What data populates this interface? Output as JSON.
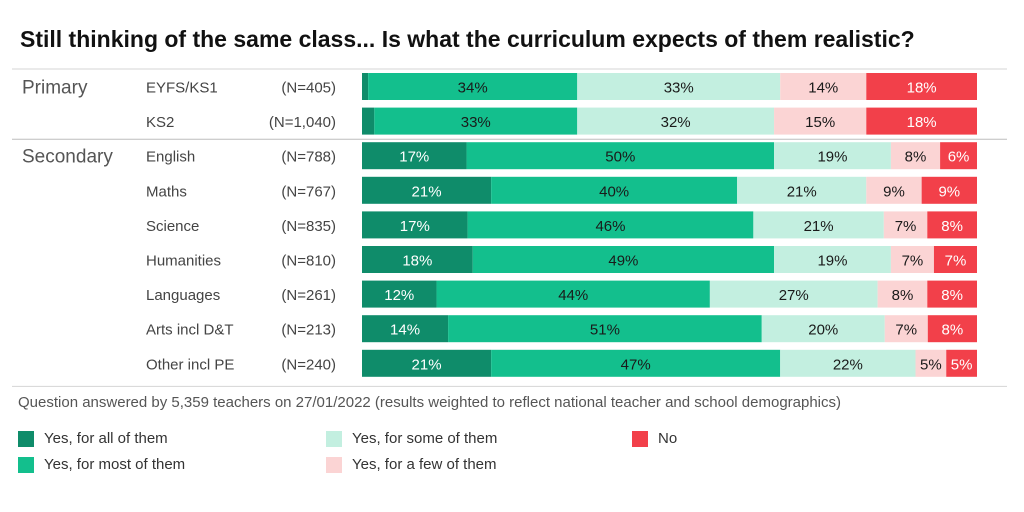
{
  "title": "Still thinking of the same class... Is what the curriculum expects of them realistic?",
  "note": "Question answered by 5,359 teachers on 27/01/2022 (results weighted to reflect national teacher and school demographics)",
  "colors": {
    "all": "#0f8c6a",
    "most": "#13bf8d",
    "some": "#c3efe0",
    "few": "#fbd4d4",
    "no": "#f2404a"
  },
  "chart_data": {
    "type": "bar",
    "orientation": "horizontal-stacked",
    "title": "Still thinking of the same class... Is what the curriculum expects of them realistic?",
    "groups": [
      {
        "name": "Primary",
        "rows": [
          {
            "label": "EYFS/KS1",
            "n": "(N=405)",
            "values": [
              1,
              34,
              33,
              14,
              18
            ],
            "labels": [
              "",
              "34%",
              "33%",
              "14%",
              "18%"
            ]
          },
          {
            "label": "KS2",
            "n": "(N=1,040)",
            "values": [
              2,
              33,
              32,
              15,
              18
            ],
            "labels": [
              "",
              "33%",
              "32%",
              "15%",
              "18%"
            ]
          }
        ]
      },
      {
        "name": "Secondary",
        "rows": [
          {
            "label": "English",
            "n": "(N=788)",
            "values": [
              17,
              50,
              19,
              8,
              6
            ],
            "labels": [
              "17%",
              "50%",
              "19%",
              "8%",
              "6%"
            ]
          },
          {
            "label": "Maths",
            "n": "(N=767)",
            "values": [
              21,
              40,
              21,
              9,
              9
            ],
            "labels": [
              "21%",
              "40%",
              "21%",
              "9%",
              "9%"
            ]
          },
          {
            "label": "Science",
            "n": "(N=835)",
            "values": [
              17,
              46,
              21,
              7,
              8
            ],
            "labels": [
              "17%",
              "46%",
              "21%",
              "7%",
              "8%"
            ]
          },
          {
            "label": "Humanities",
            "n": "(N=810)",
            "values": [
              18,
              49,
              19,
              7,
              7
            ],
            "labels": [
              "18%",
              "49%",
              "19%",
              "7%",
              "7%"
            ]
          },
          {
            "label": "Languages",
            "n": "(N=261)",
            "values": [
              12,
              44,
              27,
              8,
              8
            ],
            "labels": [
              "12%",
              "44%",
              "27%",
              "8%",
              "8%"
            ]
          },
          {
            "label": "Arts incl D&T",
            "n": "(N=213)",
            "values": [
              14,
              51,
              20,
              7,
              8
            ],
            "labels": [
              "14%",
              "51%",
              "20%",
              "7%",
              "8%"
            ]
          },
          {
            "label": "Other incl PE",
            "n": "(N=240)",
            "values": [
              21,
              47,
              22,
              5,
              5
            ],
            "labels": [
              "21%",
              "47%",
              "22%",
              "5%",
              "5%"
            ]
          }
        ]
      }
    ],
    "series": [
      {
        "key": "all",
        "name": "Yes, for all of them"
      },
      {
        "key": "most",
        "name": "Yes, for most of them"
      },
      {
        "key": "some",
        "name": "Yes, for some of them"
      },
      {
        "key": "few",
        "name": "Yes, for a few of them"
      },
      {
        "key": "no",
        "name": "No"
      }
    ],
    "legend_position": "bottom"
  }
}
